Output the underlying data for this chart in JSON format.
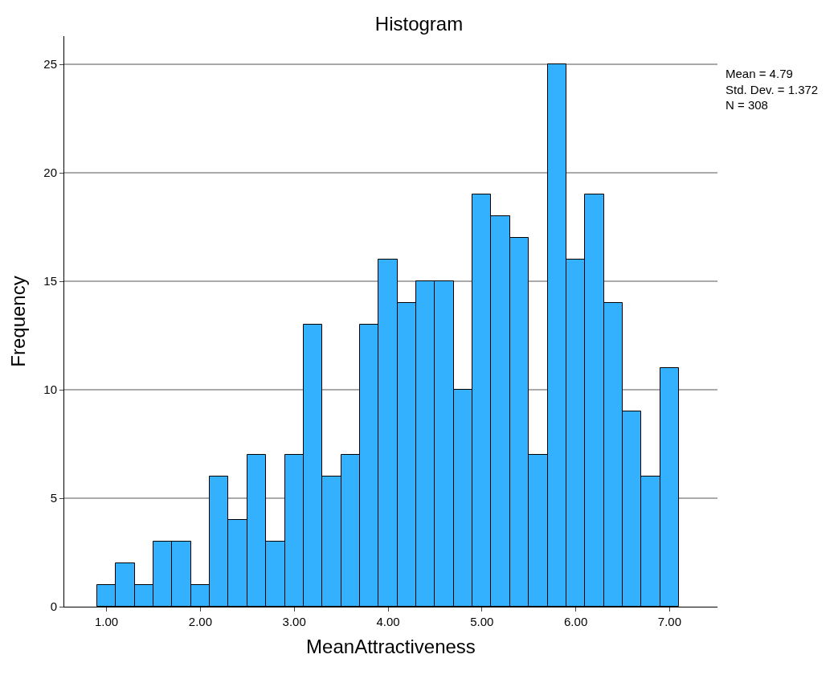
{
  "chart_data": {
    "type": "histogram",
    "title": "Histogram",
    "xlabel": "MeanAttractiveness",
    "ylabel": "Frequency",
    "bins": [
      0.9,
      1.1,
      1.3,
      1.5,
      1.7,
      1.9,
      2.1,
      2.3,
      2.5,
      2.7,
      2.9,
      3.1,
      3.3,
      3.5,
      3.7,
      3.9,
      4.1,
      4.3,
      4.5,
      4.7,
      4.9,
      5.1,
      5.3,
      5.5,
      5.7,
      5.9,
      6.1,
      6.3,
      6.5,
      6.7,
      6.9,
      7.1
    ],
    "values": [
      1,
      2,
      1,
      3,
      3,
      1,
      6,
      4,
      7,
      3,
      7,
      13,
      6,
      7,
      13,
      16,
      14,
      15,
      15,
      10,
      19,
      18,
      17,
      7,
      25,
      16,
      19,
      14,
      9,
      6,
      11
    ],
    "color": "#33b1ff",
    "xlim": [
      0.55,
      7.51
    ],
    "xticks": [
      {
        "value": 1,
        "label": "1.00"
      },
      {
        "value": 2,
        "label": "2.00"
      },
      {
        "value": 3,
        "label": "3.00"
      },
      {
        "value": 4,
        "label": "4.00"
      },
      {
        "value": 5,
        "label": "5.00"
      },
      {
        "value": 6,
        "label": "6.00"
      },
      {
        "value": 7,
        "label": "7.00"
      }
    ],
    "ylim": [
      0,
      26.3
    ],
    "yticks": [
      0,
      5,
      10,
      15,
      20,
      25
    ],
    "grid": "y",
    "annotations": [
      "Mean = 4.79",
      "Std. Dev. = 1.372",
      "N = 308"
    ]
  }
}
